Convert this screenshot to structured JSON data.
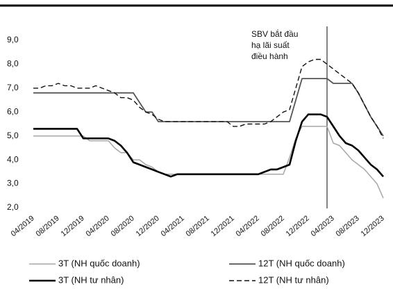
{
  "chart_data": {
    "type": "line",
    "annotation": [
      "SBV bắt đầu",
      "hạ lãi suất",
      "điều hành"
    ],
    "categories": [
      "04/2019",
      null,
      null,
      null,
      "08/2019",
      null,
      null,
      null,
      "12/2019",
      null,
      null,
      null,
      "04/2020",
      null,
      null,
      null,
      "08/2020",
      null,
      null,
      null,
      "12/2020",
      null,
      null,
      null,
      "04/2021",
      null,
      null,
      null,
      "08/2021",
      null,
      null,
      null,
      "12/2021",
      null,
      null,
      null,
      "04/2022",
      null,
      null,
      null,
      "08/2022",
      null,
      null,
      null,
      "12/2022",
      null,
      null,
      null,
      "04/2023",
      null,
      null,
      null,
      "08/2023",
      null,
      null,
      null,
      "12/2023"
    ],
    "series": [
      {
        "name": "3T (NH quốc doanh)",
        "color": "#a3a8a8",
        "width": 1.5,
        "dashed": false,
        "values": [
          5.0,
          5.0,
          5.0,
          5.0,
          5.0,
          5.0,
          5.0,
          5.0,
          5.0,
          4.8,
          4.8,
          4.8,
          4.8,
          4.5,
          4.3,
          4.3,
          4.0,
          4.0,
          3.8,
          3.7,
          3.5,
          3.4,
          3.4,
          3.4,
          3.4,
          3.4,
          3.4,
          3.4,
          3.4,
          3.4,
          3.4,
          3.4,
          3.4,
          3.4,
          3.4,
          3.4,
          3.4,
          3.4,
          3.4,
          3.4,
          3.4,
          4.1,
          4.9,
          5.4,
          5.4,
          5.4,
          5.4,
          5.4,
          4.7,
          4.6,
          4.3,
          4.0,
          3.8,
          3.6,
          3.3,
          3.0,
          2.4
        ]
      },
      {
        "name": "12T (NH quốc doanh)",
        "color": "#555555",
        "width": 1.8,
        "dashed": false,
        "values": [
          6.8,
          6.8,
          6.8,
          6.8,
          6.8,
          6.8,
          6.8,
          6.8,
          6.8,
          6.8,
          6.8,
          6.8,
          6.8,
          6.8,
          6.8,
          6.8,
          6.8,
          6.4,
          6.0,
          6.0,
          5.6,
          5.6,
          5.6,
          5.6,
          5.6,
          5.6,
          5.6,
          5.6,
          5.6,
          5.6,
          5.6,
          5.6,
          5.6,
          5.6,
          5.6,
          5.6,
          5.6,
          5.6,
          5.6,
          5.6,
          5.6,
          5.6,
          6.5,
          7.4,
          7.4,
          7.4,
          7.4,
          7.4,
          7.2,
          7.2,
          7.2,
          7.2,
          6.8,
          6.3,
          5.8,
          5.4,
          5.0
        ]
      },
      {
        "name": "3T (NH tư nhân)",
        "color": "#000000",
        "width": 2.6,
        "dashed": false,
        "values": [
          5.3,
          5.3,
          5.3,
          5.3,
          5.3,
          5.3,
          5.3,
          5.3,
          4.9,
          4.9,
          4.9,
          4.9,
          4.9,
          4.8,
          4.6,
          4.3,
          3.9,
          3.8,
          3.7,
          3.6,
          3.5,
          3.4,
          3.3,
          3.4,
          3.4,
          3.4,
          3.4,
          3.4,
          3.4,
          3.4,
          3.4,
          3.4,
          3.4,
          3.4,
          3.4,
          3.4,
          3.4,
          3.5,
          3.6,
          3.6,
          3.7,
          3.8,
          4.8,
          5.6,
          5.9,
          5.9,
          5.9,
          5.8,
          5.4,
          5.0,
          4.7,
          4.6,
          4.4,
          4.1,
          3.8,
          3.6,
          3.3
        ]
      },
      {
        "name": "12T (NH tư nhân)",
        "color": "#111111",
        "width": 1.4,
        "dashed": true,
        "values": [
          7.0,
          7.0,
          7.1,
          7.1,
          7.2,
          7.1,
          7.1,
          7.0,
          7.0,
          7.0,
          7.1,
          7.0,
          6.9,
          6.8,
          6.6,
          6.6,
          6.5,
          6.2,
          6.0,
          5.9,
          5.7,
          5.6,
          5.6,
          5.6,
          5.6,
          5.6,
          5.6,
          5.6,
          5.6,
          5.6,
          5.6,
          5.6,
          5.4,
          5.4,
          5.5,
          5.5,
          5.5,
          5.5,
          5.6,
          5.8,
          6.0,
          6.1,
          7.0,
          7.9,
          8.1,
          8.2,
          8.2,
          8.0,
          7.8,
          7.6,
          7.4,
          7.2,
          6.8,
          6.3,
          5.8,
          5.4,
          4.9
        ]
      }
    ],
    "ylim": [
      2,
      9
    ],
    "yticks": [
      {
        "value": 2,
        "label": "2,0"
      },
      {
        "value": 3,
        "label": "3,0"
      },
      {
        "value": 4,
        "label": "4,0"
      },
      {
        "value": 5,
        "label": "5,0"
      },
      {
        "value": 6,
        "label": "6,0"
      },
      {
        "value": 7,
        "label": "7,0"
      },
      {
        "value": 8,
        "label": "8,0"
      },
      {
        "value": 9,
        "label": "9,0"
      }
    ],
    "grid": false
  }
}
